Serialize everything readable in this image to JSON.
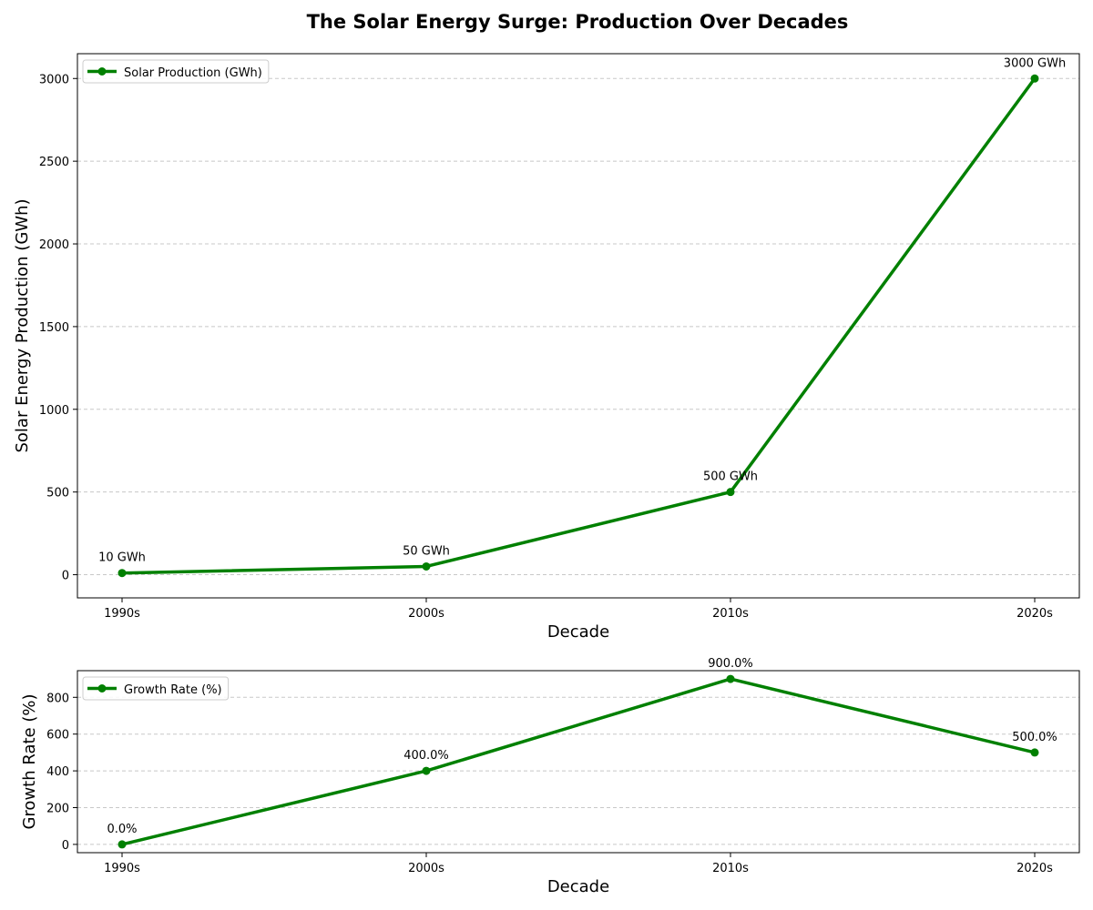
{
  "title": "The Solar Energy Surge: Production Over Decades",
  "colors": {
    "series": "#008000",
    "grid": "#c8c8c8",
    "axis": "#000000"
  },
  "chart_data": [
    {
      "type": "line",
      "categories": [
        "1990s",
        "2000s",
        "2010s",
        "2020s"
      ],
      "series": [
        {
          "name": "Solar Production (GWh)",
          "values": [
            10,
            50,
            500,
            3000
          ]
        }
      ],
      "data_labels": [
        "10 GWh",
        "50 GWh",
        "500 GWh",
        "3000 GWh"
      ],
      "xlabel": "Decade",
      "ylabel": "Solar Energy Production (GWh)",
      "ylim": [
        -140,
        3150
      ],
      "yticks": [
        0,
        500,
        1000,
        1500,
        2000,
        2500,
        3000
      ],
      "grid": "y-dashed",
      "legend": "upper-left"
    },
    {
      "type": "line",
      "categories": [
        "1990s",
        "2000s",
        "2010s",
        "2020s"
      ],
      "series": [
        {
          "name": "Growth Rate (%)",
          "values": [
            0,
            400,
            900,
            500
          ]
        }
      ],
      "data_labels": [
        "0.0%",
        "400.0%",
        "900.0%",
        "500.0%"
      ],
      "xlabel": "Decade",
      "ylabel": "Growth Rate (%)",
      "ylim": [
        -45,
        945
      ],
      "yticks": [
        0,
        200,
        400,
        600,
        800
      ],
      "grid": "y-dashed",
      "legend": "upper-left"
    }
  ]
}
